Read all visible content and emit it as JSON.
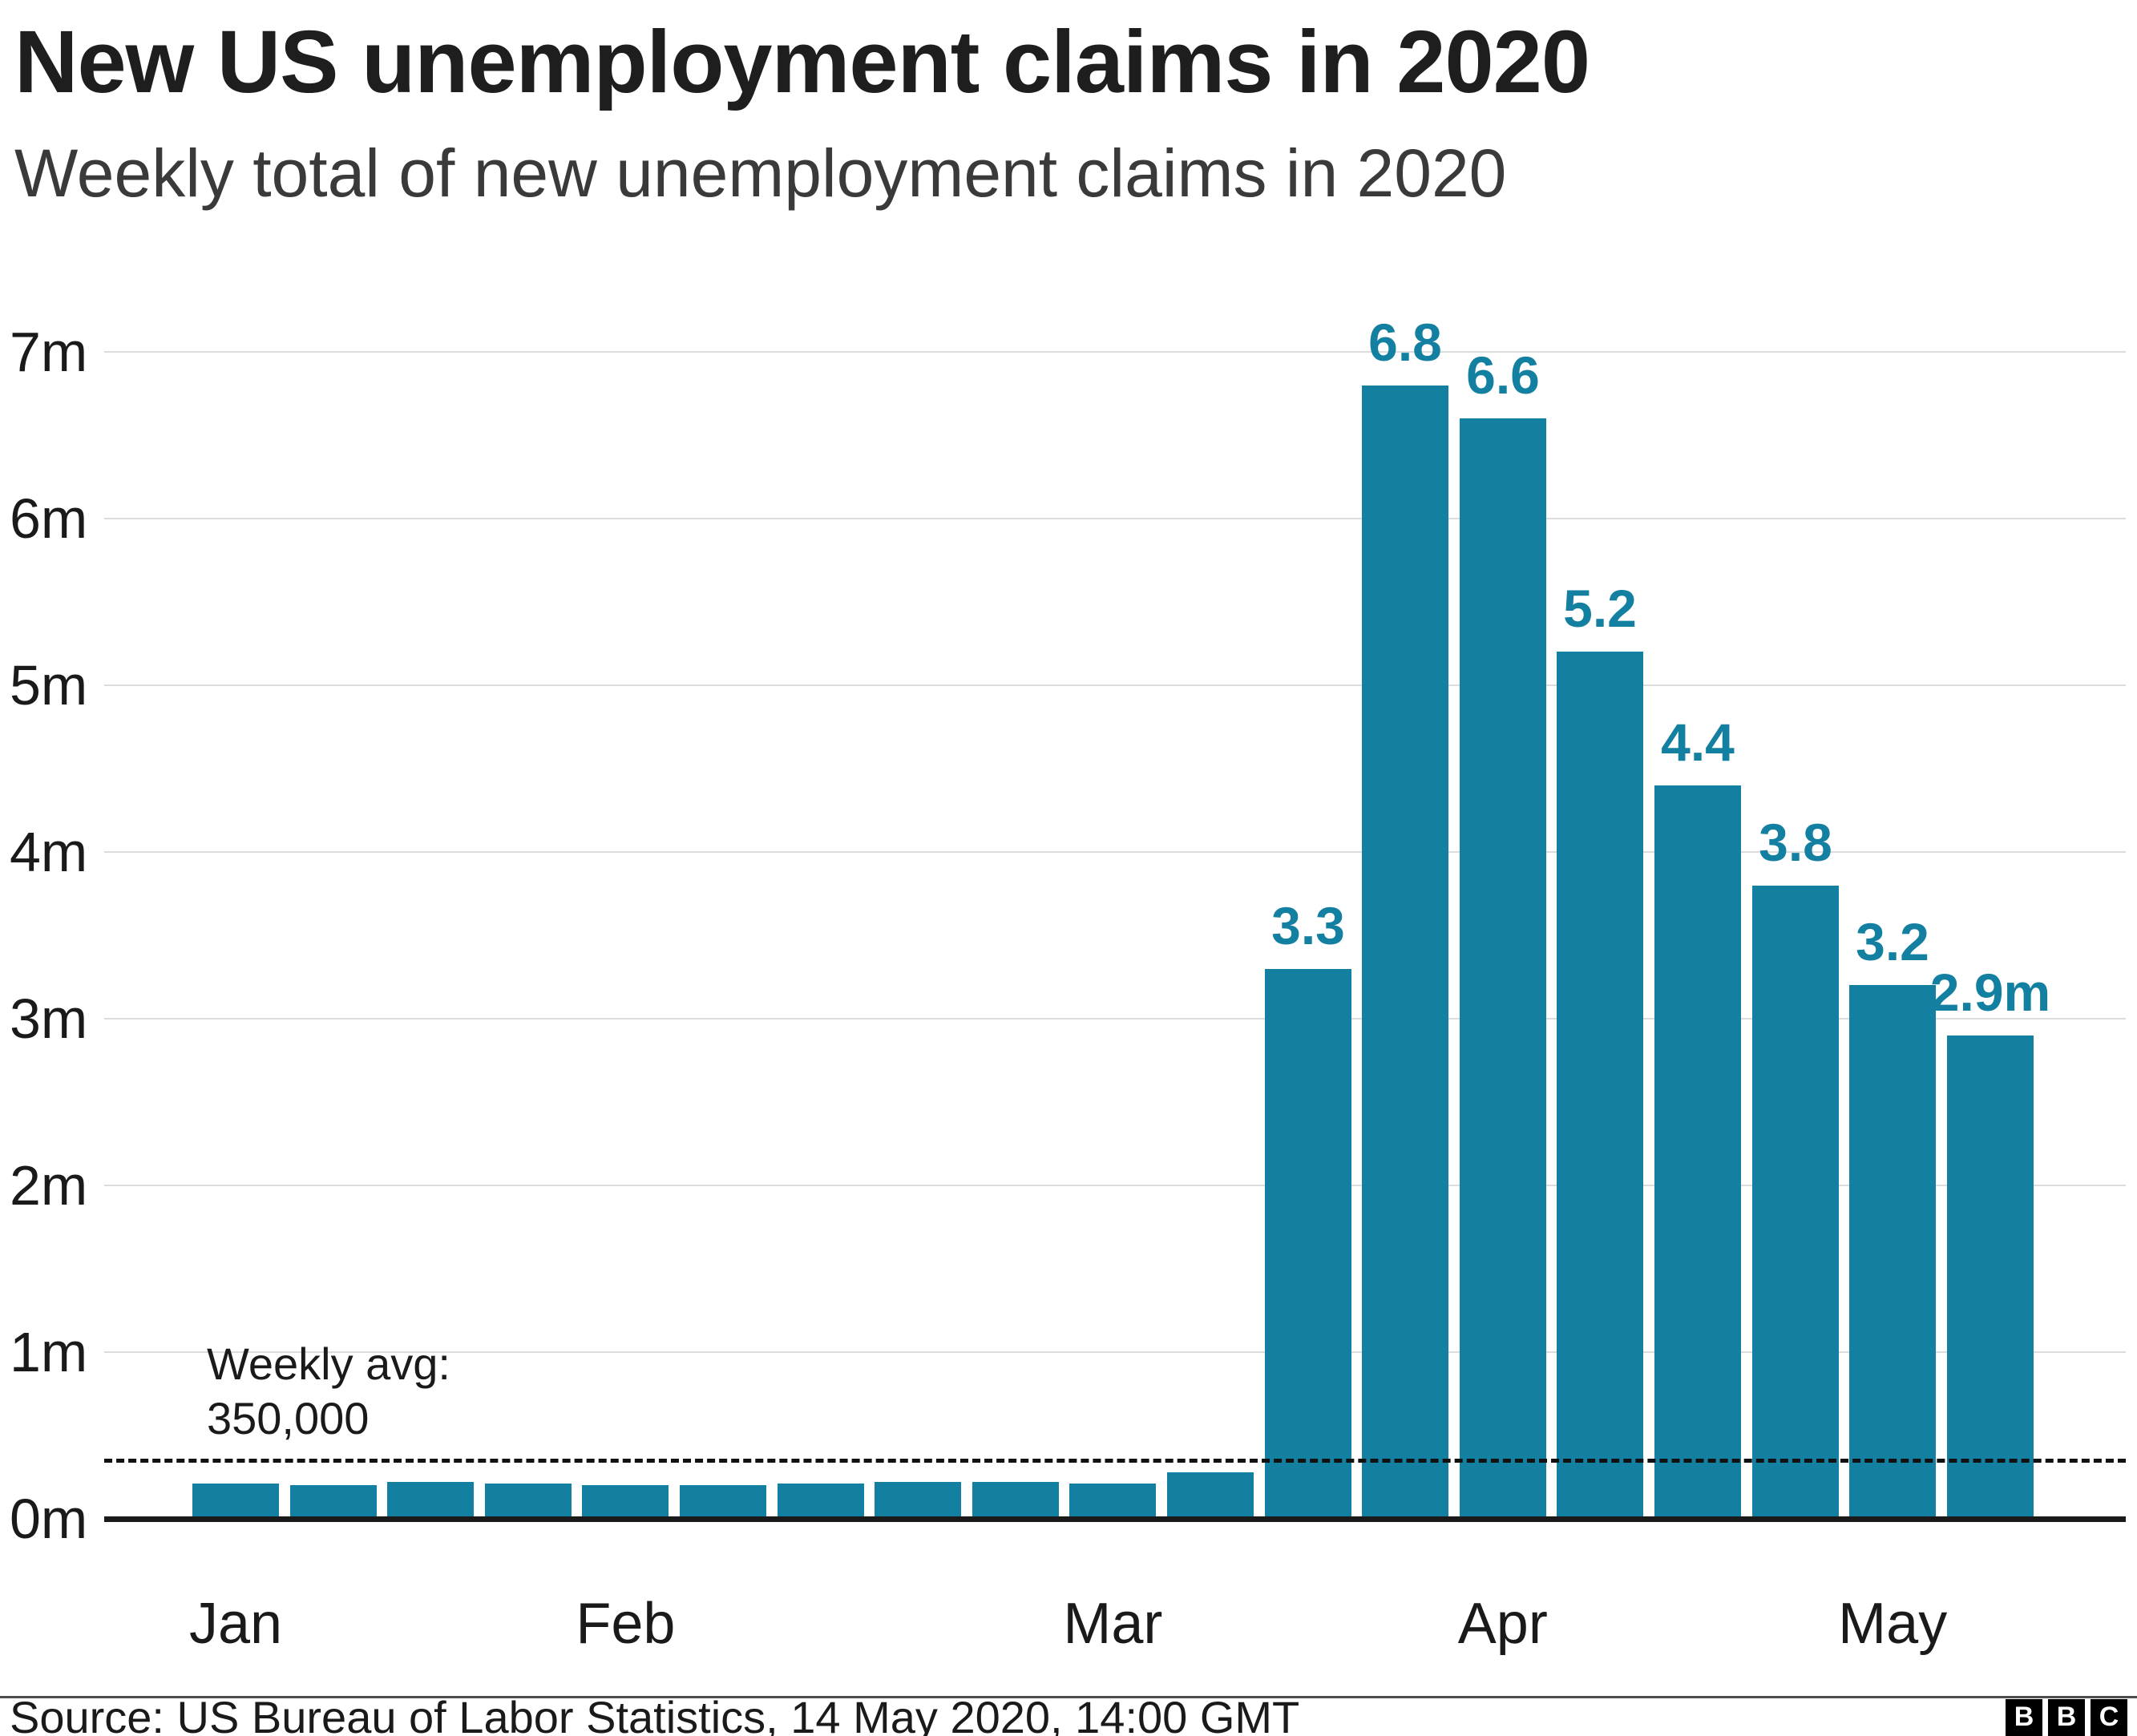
{
  "chart_data": {
    "type": "bar",
    "title": "New US unemployment claims in 2020",
    "subtitle": "Weekly total of new unemployment claims in 2020",
    "xlabel": "",
    "ylabel": "",
    "ylim": [
      0,
      7
    ],
    "grid": true,
    "legend": "none",
    "y_ticks": [
      "0m",
      "1m",
      "2m",
      "3m",
      "4m",
      "5m",
      "6m",
      "7m"
    ],
    "unit": "millions of claims per week",
    "values_millions": [
      0.21,
      0.2,
      0.22,
      0.21,
      0.2,
      0.2,
      0.21,
      0.22,
      0.22,
      0.21,
      0.28,
      3.3,
      6.8,
      6.6,
      5.2,
      4.4,
      3.8,
      3.2,
      2.9
    ],
    "bar_labels": [
      "",
      "",
      "",
      "",
      "",
      "",
      "",
      "",
      "",
      "",
      "",
      "3.3",
      "6.8",
      "6.6",
      "5.2",
      "4.4",
      "3.8",
      "3.2",
      "2.9m"
    ],
    "x_month_labels": [
      {
        "label": "Jan",
        "bar_index": 0
      },
      {
        "label": "Feb",
        "bar_index": 4
      },
      {
        "label": "Mar",
        "bar_index": 9
      },
      {
        "label": "Apr",
        "bar_index": 13
      },
      {
        "label": "May",
        "bar_index": 17
      }
    ],
    "bar_color": "#1380A1",
    "label_color": "#1380A1",
    "gridline_color": "#dcdcdc",
    "axis_color": "#1a1a1a",
    "average_line": {
      "value_millions": 0.35,
      "label_line1": "Weekly avg:",
      "label_line2": "350,000",
      "style": "dashed"
    }
  },
  "footer": {
    "source": "Source: US Bureau of Labor Statistics, 14 May 2020, 14:00 GMT",
    "logo_letters": [
      "B",
      "B",
      "C"
    ]
  }
}
